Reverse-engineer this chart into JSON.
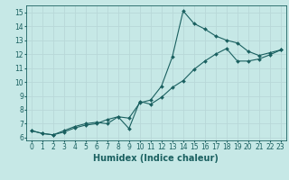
{
  "xlabel": "Humidex (Indice chaleur)",
  "xlim": [
    -0.5,
    23.5
  ],
  "ylim": [
    5.8,
    15.5
  ],
  "xticks": [
    0,
    1,
    2,
    3,
    4,
    5,
    6,
    7,
    8,
    9,
    10,
    11,
    12,
    13,
    14,
    15,
    16,
    17,
    18,
    19,
    20,
    21,
    22,
    23
  ],
  "yticks": [
    6,
    7,
    8,
    9,
    10,
    11,
    12,
    13,
    14,
    15
  ],
  "bg_color": "#c6e8e6",
  "line_color": "#1a6060",
  "grid_color": "#b8d8d8",
  "line1_x": [
    0,
    1,
    2,
    3,
    4,
    5,
    6,
    7,
    8,
    9,
    10,
    11,
    12,
    13,
    14,
    15,
    16,
    17,
    18,
    19,
    20,
    21,
    22,
    23
  ],
  "line1_y": [
    6.5,
    6.3,
    6.2,
    6.4,
    6.7,
    6.9,
    7.0,
    7.3,
    7.5,
    7.4,
    8.5,
    8.7,
    9.7,
    11.8,
    15.1,
    14.2,
    13.8,
    13.3,
    13.0,
    12.8,
    12.2,
    11.9,
    12.1,
    12.3
  ],
  "line2_x": [
    0,
    1,
    2,
    3,
    4,
    5,
    6,
    7,
    8,
    9,
    10,
    11,
    12,
    13,
    14,
    15,
    16,
    17,
    18,
    19,
    20,
    21,
    22,
    23
  ],
  "line2_y": [
    6.5,
    6.3,
    6.2,
    6.5,
    6.8,
    7.0,
    7.1,
    7.0,
    7.5,
    6.65,
    8.6,
    8.4,
    8.9,
    9.6,
    10.1,
    10.9,
    11.5,
    12.0,
    12.4,
    11.5,
    11.5,
    11.65,
    11.95,
    12.3
  ],
  "marker": "D",
  "markersize": 2.0,
  "linewidth": 0.8,
  "tick_fontsize": 5.5,
  "xlabel_fontsize": 7
}
